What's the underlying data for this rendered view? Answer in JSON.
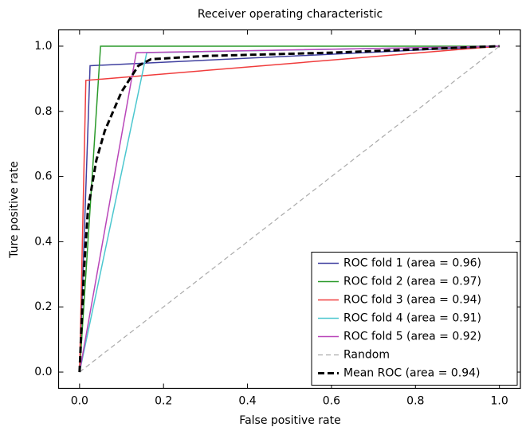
{
  "chart_data": {
    "type": "line",
    "title": "Receiver operating characteristic",
    "xlabel": "False positive rate",
    "ylabel": "Ture positive rate",
    "xlim": [
      -0.05,
      1.05
    ],
    "ylim": [
      -0.05,
      1.05
    ],
    "xticks": [
      {
        "value": 0,
        "label": "0.0"
      },
      0.2,
      0.4,
      0.6,
      0.8,
      {
        "value": 1,
        "label": "1.0"
      }
    ],
    "yticks": [
      {
        "value": 0,
        "label": "0.0"
      },
      0.2,
      0.4,
      0.6,
      0.8,
      {
        "value": 1,
        "label": "1.0"
      }
    ],
    "legend": "lower right",
    "series": [
      {
        "name": "ROC fold 1 (area = 0.96)",
        "color": "#3f3f9f",
        "linestyle": "solid",
        "x": [
          0,
          0.025,
          1
        ],
        "values": [
          0,
          0.94,
          1
        ]
      },
      {
        "name": "ROC fold 2 (area = 0.97)",
        "color": "#2a9a2a",
        "linestyle": "solid",
        "x": [
          0,
          0.05,
          1
        ],
        "values": [
          0,
          1,
          1
        ]
      },
      {
        "name": "ROC fold 3 (area = 0.94)",
        "color": "#f03c3c",
        "linestyle": "solid",
        "x": [
          0,
          0.015,
          1
        ],
        "values": [
          0,
          0.895,
          1
        ]
      },
      {
        "name": "ROC fold 4 (area = 0.91)",
        "color": "#4cc7cf",
        "linestyle": "solid",
        "x": [
          0,
          0.16,
          1
        ],
        "values": [
          0,
          0.98,
          1
        ]
      },
      {
        "name": "ROC fold 5 (area = 0.92)",
        "color": "#b946b9",
        "linestyle": "solid",
        "x": [
          0,
          0.135,
          1
        ],
        "values": [
          0,
          0.98,
          1
        ]
      },
      {
        "name": "Random",
        "color": "#aaaaaa",
        "linestyle": "dashed",
        "x": [
          0,
          1
        ],
        "values": [
          0,
          1
        ]
      },
      {
        "name": "Mean ROC (area = 0.94)",
        "color": "#000000",
        "linestyle": "bold-dashed",
        "x": [
          0,
          0.01,
          0.02,
          0.04,
          0.06,
          0.1,
          0.14,
          0.17,
          0.3,
          0.6,
          1
        ],
        "values": [
          0,
          0.3,
          0.5,
          0.65,
          0.74,
          0.86,
          0.94,
          0.96,
          0.97,
          0.98,
          1
        ]
      }
    ]
  }
}
